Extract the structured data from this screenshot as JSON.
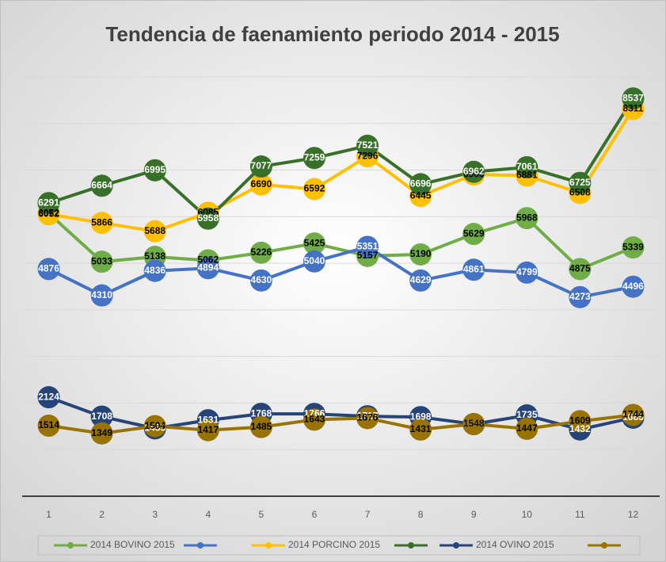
{
  "chart_data": {
    "type": "line",
    "title": "Tendencia de faenamiento periodo 2014 - 2015",
    "categories": [
      "1",
      "2",
      "3",
      "4",
      "5",
      "6",
      "7",
      "8",
      "9",
      "10",
      "11",
      "12"
    ],
    "ylim": [
      0,
      9000
    ],
    "yticks": [
      1000,
      2000,
      3000,
      4000,
      5000,
      6000,
      7000,
      8000,
      9000
    ],
    "grid": true,
    "legend": "bottom",
    "series": [
      {
        "name": "2014 BOVINO 2015",
        "color": "#70ad47",
        "label_color": "#000000",
        "values": [
          6072,
          5033,
          5138,
          5062,
          5226,
          5425,
          5157,
          5190,
          5629,
          5968,
          4875,
          5339
        ]
      },
      {
        "color": "#4472c4",
        "label_color": "#ffffff",
        "values": [
          4876,
          4310,
          4836,
          4894,
          4630,
          5040,
          5351,
          4629,
          4861,
          4799,
          4273,
          4496
        ]
      },
      {
        "name": "2014 PORCINO 2015",
        "color": "#ffc000",
        "label_color": "#000000",
        "values": [
          6052,
          5866,
          5688,
          6085,
          6690,
          6592,
          7296,
          6445,
          6906,
          6881,
          6508,
          8311
        ]
      },
      {
        "color": "#38702a",
        "label_color": "#ffffff",
        "values": [
          6291,
          6664,
          6995,
          5958,
          7077,
          7259,
          7521,
          6696,
          6962,
          7061,
          6725,
          8537
        ]
      },
      {
        "name": "2014 OVINO 2015",
        "color": "#264478",
        "label_color": "#ffffff",
        "values": [
          2124,
          1708,
          1455,
          1631,
          1768,
          1766,
          1717,
          1698,
          1548,
          1735,
          1432,
          1685
        ]
      },
      {
        "color": "#997300",
        "label_color": "#000000",
        "values": [
          1514,
          1349,
          1504,
          1417,
          1485,
          1643,
          1676,
          1431,
          1548,
          1447,
          1609,
          1744
        ]
      }
    ]
  }
}
